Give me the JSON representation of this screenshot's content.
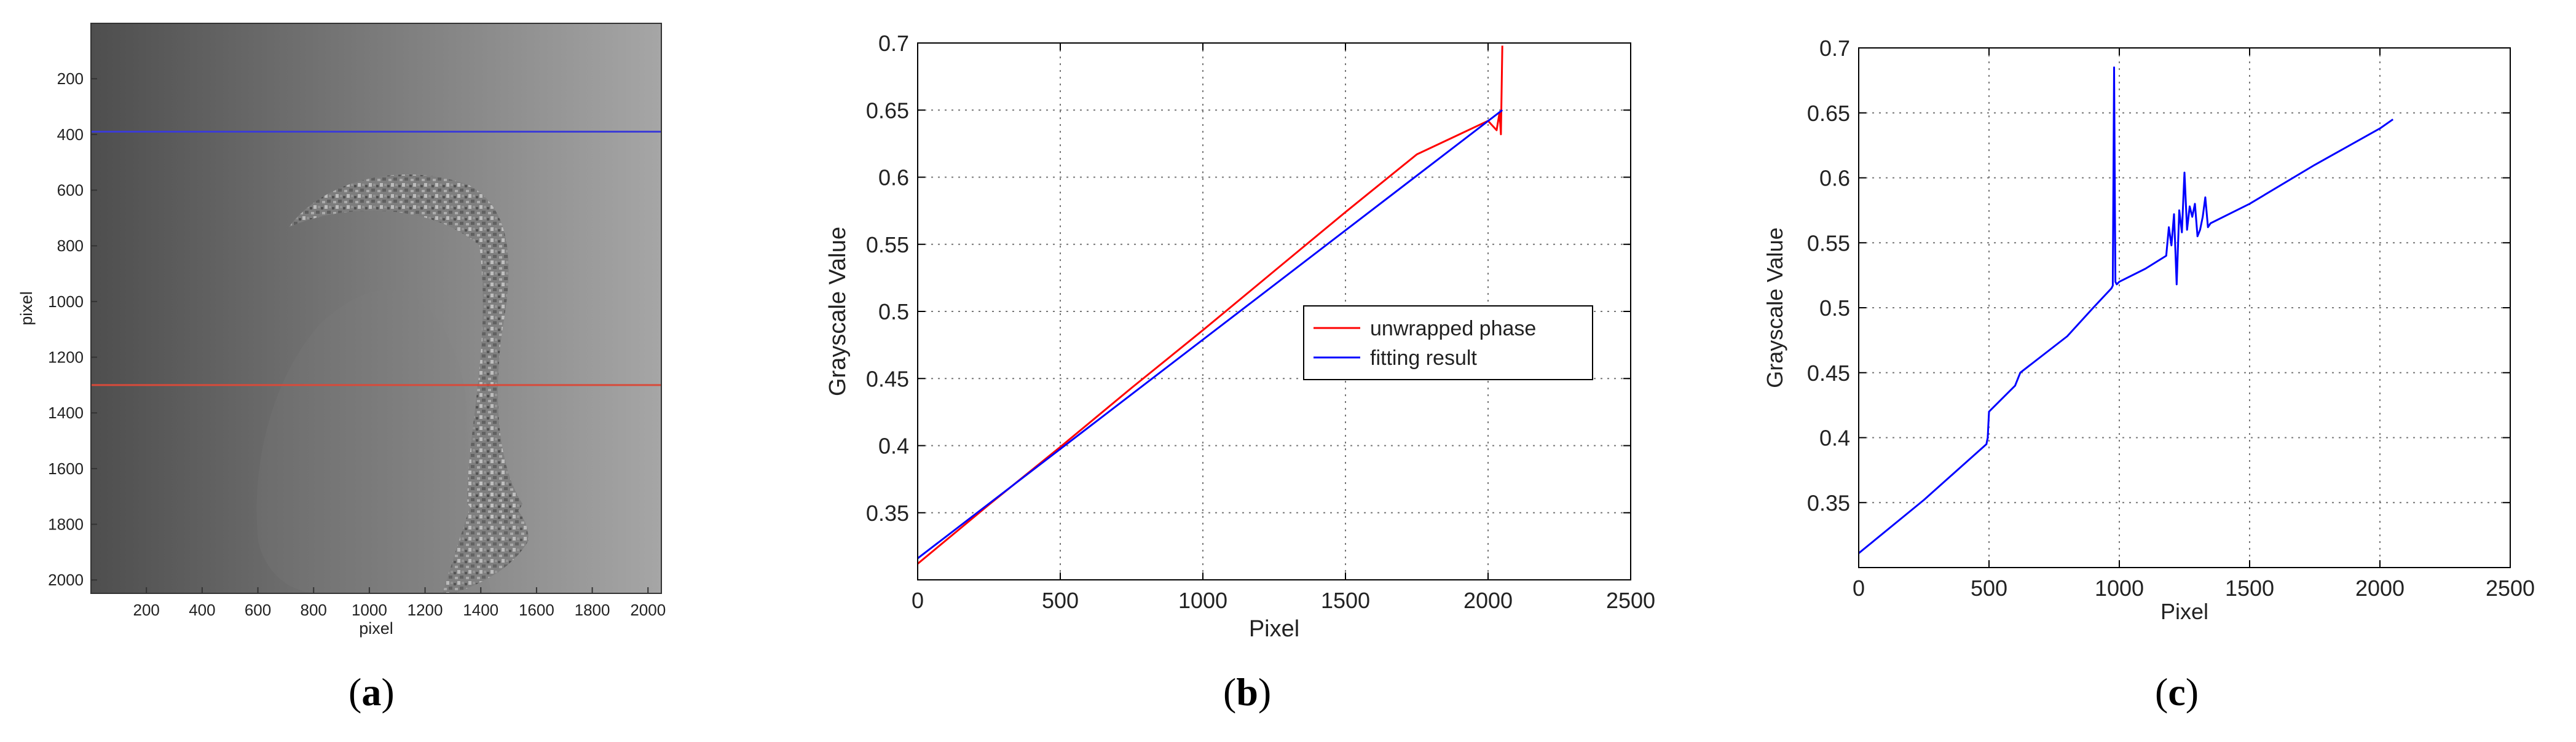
{
  "panel_labels": {
    "a": {
      "open": "(",
      "letter": "a",
      "close": ")"
    },
    "b": {
      "open": "(",
      "letter": "b",
      "close": ")"
    },
    "c": {
      "open": "(",
      "letter": "c",
      "close": ")"
    }
  },
  "chart_data": [
    {
      "type": "heatmap",
      "xlabel": "pixel",
      "ylabel": "pixel",
      "x_ticks": [
        200,
        400,
        600,
        800,
        1000,
        1200,
        1400,
        1600,
        1800,
        2000
      ],
      "y_ticks": [
        200,
        400,
        600,
        800,
        1000,
        1200,
        1400,
        1600,
        1800,
        2000
      ],
      "xlim": [
        1,
        2048
      ],
      "ylim": [
        1,
        2048
      ],
      "y_reversed": true,
      "colormap": "gray",
      "lines": [
        {
          "row": 390,
          "color": "#3b3bd6"
        },
        {
          "row": 1300,
          "color": "#d84a3a"
        }
      ]
    },
    {
      "type": "line",
      "xlabel": "Pixel",
      "ylabel": "Grayscale Value",
      "xlim": [
        0,
        2500
      ],
      "ylim": [
        0.3,
        0.7
      ],
      "x_ticks": [
        0,
        500,
        1000,
        1500,
        2000,
        2500
      ],
      "y_ticks": [
        0.35,
        0.4,
        0.45,
        0.5,
        0.55,
        0.6,
        0.65,
        0.7
      ],
      "grid": true,
      "legend_position": "center-right",
      "series": [
        {
          "name": "unwrapped phase",
          "color": "#ff0000",
          "x": [
            0,
            250,
            500,
            750,
            1000,
            1250,
            1500,
            1750,
            1900,
            2000,
            2030,
            2040,
            2045,
            2050
          ],
          "y": [
            0.312,
            0.356,
            0.399,
            0.443,
            0.486,
            0.53,
            0.574,
            0.617,
            0.632,
            0.642,
            0.635,
            0.648,
            0.632,
            0.698
          ]
        },
        {
          "name": "fitting result",
          "color": "#0000ff",
          "x": [
            0,
            2050
          ],
          "y": [
            0.316,
            0.65
          ]
        }
      ]
    },
    {
      "type": "line",
      "xlabel": "Pixel",
      "ylabel": "Grayscale Value",
      "xlim": [
        0,
        2500
      ],
      "ylim": [
        0.3,
        0.7
      ],
      "x_ticks": [
        0,
        500,
        1000,
        1500,
        2000,
        2500
      ],
      "y_ticks": [
        0.35,
        0.4,
        0.45,
        0.5,
        0.55,
        0.6,
        0.65,
        0.7
      ],
      "grid": true,
      "series": [
        {
          "color": "#0000ff",
          "x": [
            0,
            250,
            490,
            495,
            500,
            600,
            620,
            800,
            900,
            970,
            975,
            980,
            985,
            990,
            1000,
            1100,
            1180,
            1190,
            1200,
            1210,
            1220,
            1230,
            1240,
            1250,
            1260,
            1270,
            1280,
            1290,
            1300,
            1310,
            1320,
            1330,
            1340,
            1350,
            1500,
            1750,
            2000,
            2050
          ],
          "y": [
            0.311,
            0.352,
            0.395,
            0.4,
            0.42,
            0.44,
            0.45,
            0.478,
            0.5,
            0.515,
            0.517,
            0.685,
            0.52,
            0.518,
            0.52,
            0.53,
            0.54,
            0.562,
            0.548,
            0.572,
            0.518,
            0.575,
            0.558,
            0.604,
            0.56,
            0.578,
            0.57,
            0.58,
            0.555,
            0.56,
            0.57,
            0.585,
            0.562,
            0.565,
            0.58,
            0.61,
            0.638,
            0.645
          ]
        }
      ]
    }
  ]
}
